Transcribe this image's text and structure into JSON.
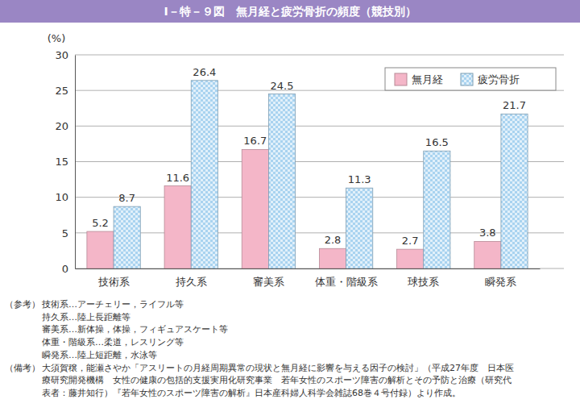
{
  "chart_data": {
    "type": "bar",
    "title": "Ⅰ－特－９図　無月経と疲労骨折の頻度（競技別）",
    "y_label": "(%)",
    "categories": [
      "技術系",
      "持久系",
      "審美系",
      "体重・階級系",
      "球技系",
      "瞬発系"
    ],
    "series": [
      {
        "name": "無月経",
        "color": "#f4b6c8",
        "values": [
          5.2,
          11.6,
          16.7,
          2.8,
          2.7,
          3.8
        ]
      },
      {
        "name": "疲労骨折",
        "color": "#a9d3f0",
        "values": [
          8.7,
          26.4,
          24.5,
          11.3,
          16.5,
          21.7
        ]
      }
    ],
    "ylim": [
      0,
      30
    ],
    "yticks": [
      0,
      5,
      10,
      15,
      20,
      25,
      30
    ],
    "grid": true,
    "legend": "top-right",
    "data_labels": true,
    "notes": [
      {
        "label": "（参考）",
        "lines": [
          "技術系…アーチェリー，ライフル等",
          "持久系…陸上長距離等",
          "審美系…新体操，体操，フィギュアスケート等",
          "体重・階級系…柔道，レスリング等",
          "瞬発系…陸上短距離，水泳等"
        ]
      },
      {
        "label": "（備考）",
        "lines": [
          "大須賀穣，能瀬さやか「アスリートの月経周期異常の現状と無月経に影響を与える因子の検討」（平成27年度　日本医",
          "療研究開発機構　女性の健康の包括的支援実用化研究事業　若年女性のスポーツ障害の解析とその予防と治療（研究代",
          "表者：藤井知行）『若年女性のスポーツ障害の解析』日本産科婦人科学会雑誌68巻４号付録）より作成。"
        ]
      }
    ]
  }
}
